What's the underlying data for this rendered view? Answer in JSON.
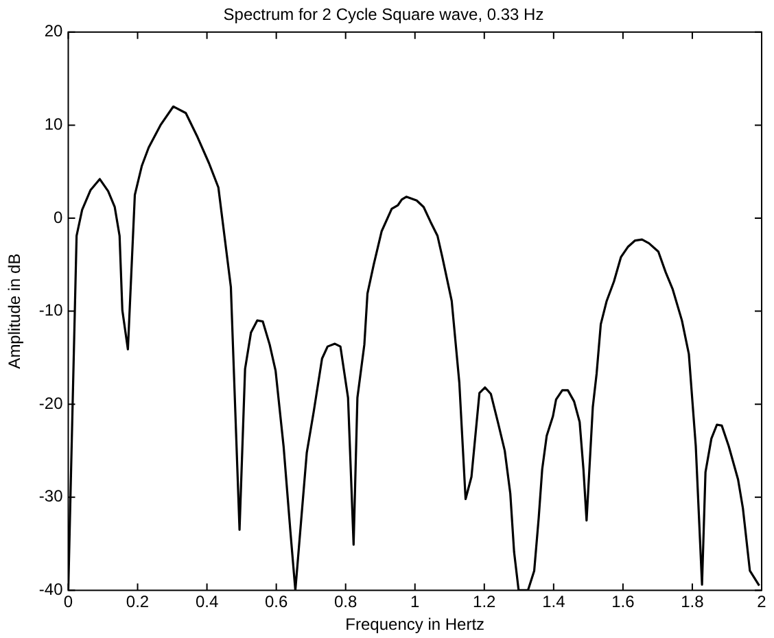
{
  "chart_data": {
    "type": "line",
    "title": "Spectrum for 2 Cycle Square wave, 0.33 Hz",
    "xlabel": "Frequency in Hertz",
    "ylabel": "Amplitude in dB",
    "x": [
      0,
      0.024,
      0.04,
      0.064,
      0.091,
      0.115,
      0.134,
      0.148,
      0.156,
      0.172,
      0.192,
      0.212,
      0.232,
      0.266,
      0.303,
      0.339,
      0.373,
      0.406,
      0.433,
      0.469,
      0.494,
      0.51,
      0.527,
      0.545,
      0.561,
      0.581,
      0.598,
      0.621,
      0.641,
      0.655,
      0.688,
      0.708,
      0.732,
      0.748,
      0.769,
      0.785,
      0.807,
      0.823,
      0.834,
      0.854,
      0.863,
      0.881,
      0.904,
      0.933,
      0.951,
      0.962,
      0.975,
      1.005,
      1.025,
      1.045,
      1.065,
      1.079,
      1.106,
      1.128,
      1.146,
      1.163,
      1.186,
      1.202,
      1.219,
      1.239,
      1.259,
      1.275,
      1.286,
      1.299,
      1.314,
      1.326,
      1.344,
      1.357,
      1.367,
      1.38,
      1.398,
      1.407,
      1.425,
      1.441,
      1.459,
      1.475,
      1.486,
      1.495,
      1.513,
      1.524,
      1.536,
      1.553,
      1.574,
      1.594,
      1.614,
      1.635,
      1.655,
      1.675,
      1.702,
      1.723,
      1.743,
      1.77,
      1.79,
      1.81,
      1.828,
      1.838,
      1.855,
      1.871,
      1.885,
      1.905,
      1.932,
      1.946,
      1.966,
      1.993
    ],
    "series": [
      {
        "color": "#000000",
        "values": [
          -40,
          -1.9,
          0.9,
          3.0,
          4.2,
          2.9,
          1.2,
          -1.9,
          -9.9,
          -14.1,
          2.5,
          5.6,
          7.6,
          10.0,
          12.0,
          11.3,
          8.7,
          5.9,
          3.3,
          -7.4,
          -33.5,
          -16.2,
          -12.3,
          -11.0,
          -11.1,
          -13.6,
          -16.4,
          -24.5,
          -33.8,
          -40,
          -25.2,
          -20.8,
          -15.1,
          -13.8,
          -13.5,
          -13.8,
          -19.3,
          -35.1,
          -19.3,
          -13.6,
          -8.1,
          -5.0,
          -1.4,
          1.0,
          1.4,
          2.0,
          2.3,
          1.9,
          1.2,
          -0.4,
          -1.9,
          -4.2,
          -8.9,
          -17.7,
          -30.2,
          -27.8,
          -18.8,
          -18.2,
          -18.9,
          -21.9,
          -25.0,
          -29.6,
          -35.9,
          -40,
          -40,
          -40,
          -37.9,
          -32.2,
          -27.0,
          -23.4,
          -21.3,
          -19.5,
          -18.5,
          -18.5,
          -19.7,
          -21.9,
          -27.0,
          -32.5,
          -20.3,
          -16.7,
          -11.4,
          -8.9,
          -6.8,
          -4.2,
          -3.1,
          -2.4,
          -2.3,
          -2.7,
          -3.6,
          -5.8,
          -7.6,
          -11.0,
          -14.6,
          -24.5,
          -39.4,
          -27.3,
          -23.7,
          -22.2,
          -22.3,
          -24.5,
          -28.1,
          -31.2,
          -37.9,
          -39.5
        ]
      }
    ],
    "xlim": [
      0,
      2
    ],
    "xticks": [
      0,
      0.2,
      0.4,
      0.6,
      0.8,
      1,
      1.2,
      1.4,
      1.6,
      1.8,
      2
    ],
    "ylim": [
      -40,
      20
    ],
    "yticks": [
      -40,
      -30,
      -20,
      -10,
      0,
      10,
      20
    ],
    "grid": false,
    "legend": false,
    "marker": "none",
    "line_style": "solid"
  }
}
